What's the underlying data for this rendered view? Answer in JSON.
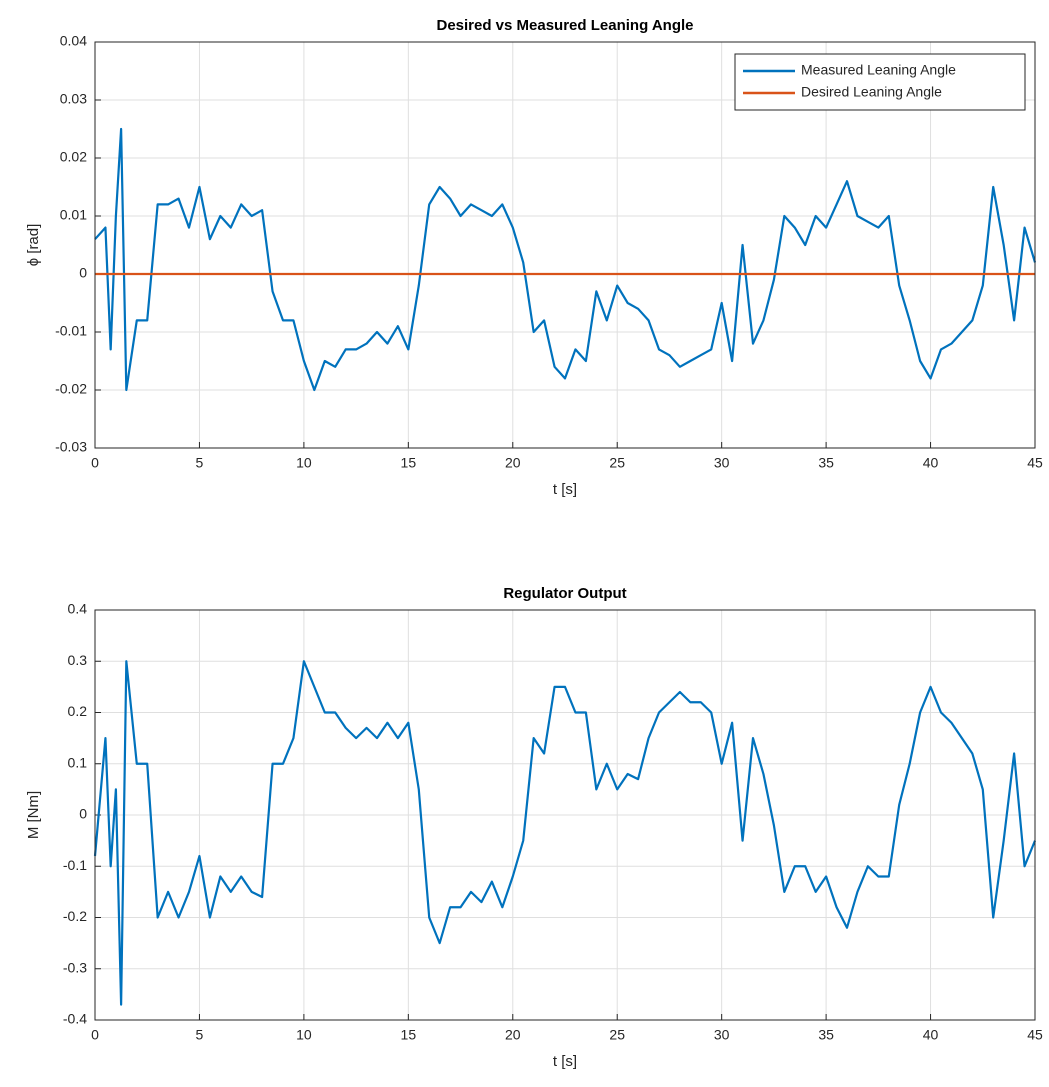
{
  "chart_data": [
    {
      "type": "line",
      "title": "Desired vs Measured Leaning Angle",
      "xlabel": "t [s]",
      "ylabel": "ϕ [rad]",
      "x": [
        0,
        0.5,
        0.75,
        1,
        1.25,
        1.5,
        2,
        2.5,
        3,
        3.5,
        4,
        4.5,
        5,
        5.5,
        6,
        6.5,
        7,
        7.5,
        8,
        8.5,
        9,
        9.5,
        10,
        10.5,
        11,
        11.5,
        12,
        12.5,
        13,
        13.5,
        14,
        14.5,
        15,
        15.5,
        16,
        16.5,
        17,
        17.5,
        18,
        18.5,
        19,
        19.5,
        20,
        20.5,
        21,
        21.5,
        22,
        22.5,
        23,
        23.5,
        24,
        24.5,
        25,
        25.5,
        26,
        26.5,
        27,
        27.5,
        28,
        28.5,
        29,
        29.5,
        30,
        30.5,
        31,
        31.5,
        32,
        32.5,
        33,
        33.5,
        34,
        34.5,
        35,
        35.5,
        36,
        36.5,
        37,
        37.5,
        38,
        38.5,
        39,
        39.5,
        40,
        40.5,
        41,
        41.5,
        42,
        42.5,
        43,
        43.5,
        44,
        44.5,
        45
      ],
      "series": [
        {
          "name": "Measured Leaning Angle",
          "color": "#0072bd",
          "values": [
            0.006,
            0.008,
            -0.013,
            0.01,
            0.025,
            -0.02,
            -0.008,
            -0.008,
            0.012,
            0.012,
            0.013,
            0.008,
            0.015,
            0.006,
            0.01,
            0.008,
            0.012,
            0.01,
            0.011,
            -0.003,
            -0.008,
            -0.008,
            -0.015,
            -0.02,
            -0.015,
            -0.016,
            -0.013,
            -0.013,
            -0.012,
            -0.01,
            -0.012,
            -0.009,
            -0.013,
            -0.002,
            0.012,
            0.015,
            0.013,
            0.01,
            0.012,
            0.011,
            0.01,
            0.012,
            0.008,
            0.002,
            -0.01,
            -0.008,
            -0.016,
            -0.018,
            -0.013,
            -0.015,
            -0.003,
            -0.008,
            -0.002,
            -0.005,
            -0.006,
            -0.008,
            -0.013,
            -0.014,
            -0.016,
            -0.015,
            -0.014,
            -0.013,
            -0.005,
            -0.015,
            0.005,
            -0.012,
            -0.008,
            -0.001,
            0.01,
            0.008,
            0.005,
            0.01,
            0.008,
            0.012,
            0.016,
            0.01,
            0.009,
            0.008,
            0.01,
            -0.002,
            -0.008,
            -0.015,
            -0.018,
            -0.013,
            -0.012,
            -0.01,
            -0.008,
            -0.002,
            0.015,
            0.005,
            -0.008,
            0.008,
            0.002
          ]
        },
        {
          "name": "Desired Leaning Angle",
          "color": "#d95319",
          "values": [
            0,
            0,
            0,
            0,
            0,
            0,
            0,
            0,
            0,
            0,
            0,
            0,
            0,
            0,
            0,
            0,
            0,
            0,
            0,
            0,
            0,
            0,
            0,
            0,
            0,
            0,
            0,
            0,
            0,
            0,
            0,
            0,
            0,
            0,
            0,
            0,
            0,
            0,
            0,
            0,
            0,
            0,
            0,
            0,
            0,
            0,
            0,
            0,
            0,
            0,
            0,
            0,
            0,
            0,
            0,
            0,
            0,
            0,
            0,
            0,
            0,
            0,
            0,
            0,
            0,
            0,
            0,
            0,
            0,
            0,
            0,
            0,
            0,
            0,
            0,
            0,
            0,
            0,
            0,
            0,
            0,
            0,
            0,
            0,
            0,
            0,
            0,
            0,
            0,
            0,
            0,
            0,
            0
          ]
        }
      ],
      "xlim": [
        0,
        45
      ],
      "xticks": [
        0,
        5,
        10,
        15,
        20,
        25,
        30,
        35,
        40,
        45
      ],
      "ylim": [
        -0.03,
        0.04
      ],
      "yticks": [
        -0.03,
        -0.02,
        -0.01,
        0,
        0.01,
        0.02,
        0.03,
        0.04
      ],
      "grid": true,
      "legend": "upper right"
    },
    {
      "type": "line",
      "title": "Regulator Output",
      "xlabel": "t [s]",
      "ylabel": "M [Nm]",
      "x": [
        0,
        0.5,
        0.75,
        1,
        1.25,
        1.5,
        2,
        2.5,
        3,
        3.5,
        4,
        4.5,
        5,
        5.5,
        6,
        6.5,
        7,
        7.5,
        8,
        8.5,
        9,
        9.5,
        10,
        10.5,
        11,
        11.5,
        12,
        12.5,
        13,
        13.5,
        14,
        14.5,
        15,
        15.5,
        16,
        16.5,
        17,
        17.5,
        18,
        18.5,
        19,
        19.5,
        20,
        20.5,
        21,
        21.5,
        22,
        22.5,
        23,
        23.5,
        24,
        24.5,
        25,
        25.5,
        26,
        26.5,
        27,
        27.5,
        28,
        28.5,
        29,
        29.5,
        30,
        30.5,
        31,
        31.5,
        32,
        32.5,
        33,
        33.5,
        34,
        34.5,
        35,
        35.5,
        36,
        36.5,
        37,
        37.5,
        38,
        38.5,
        39,
        39.5,
        40,
        40.5,
        41,
        41.5,
        42,
        42.5,
        43,
        43.5,
        44,
        44.5,
        45
      ],
      "series": [
        {
          "color": "#0072bd",
          "values": [
            -0.08,
            0.15,
            -0.1,
            0.05,
            -0.37,
            0.3,
            0.1,
            0.1,
            -0.2,
            -0.15,
            -0.2,
            -0.15,
            -0.08,
            -0.2,
            -0.12,
            -0.15,
            -0.12,
            -0.15,
            -0.16,
            0.1,
            0.1,
            0.15,
            0.3,
            0.25,
            0.2,
            0.2,
            0.17,
            0.15,
            0.17,
            0.15,
            0.18,
            0.15,
            0.18,
            0.05,
            -0.2,
            -0.25,
            -0.18,
            -0.18,
            -0.15,
            -0.17,
            -0.13,
            -0.18,
            -0.12,
            -0.05,
            0.15,
            0.12,
            0.25,
            0.25,
            0.2,
            0.2,
            0.05,
            0.1,
            0.05,
            0.08,
            0.07,
            0.15,
            0.2,
            0.22,
            0.24,
            0.22,
            0.22,
            0.2,
            0.1,
            0.18,
            -0.05,
            0.15,
            0.08,
            -0.02,
            -0.15,
            -0.1,
            -0.1,
            -0.15,
            -0.12,
            -0.18,
            -0.22,
            -0.15,
            -0.1,
            -0.12,
            -0.12,
            0.02,
            0.1,
            0.2,
            0.25,
            0.2,
            0.18,
            0.15,
            0.12,
            0.05,
            -0.2,
            -0.05,
            0.12,
            -0.1,
            -0.05
          ]
        }
      ],
      "xlim": [
        0,
        45
      ],
      "xticks": [
        0,
        5,
        10,
        15,
        20,
        25,
        30,
        35,
        40,
        45
      ],
      "ylim": [
        -0.4,
        0.4
      ],
      "yticks": [
        -0.4,
        -0.3,
        -0.2,
        -0.1,
        0,
        0.1,
        0.2,
        0.3,
        0.4
      ],
      "grid": true
    }
  ]
}
